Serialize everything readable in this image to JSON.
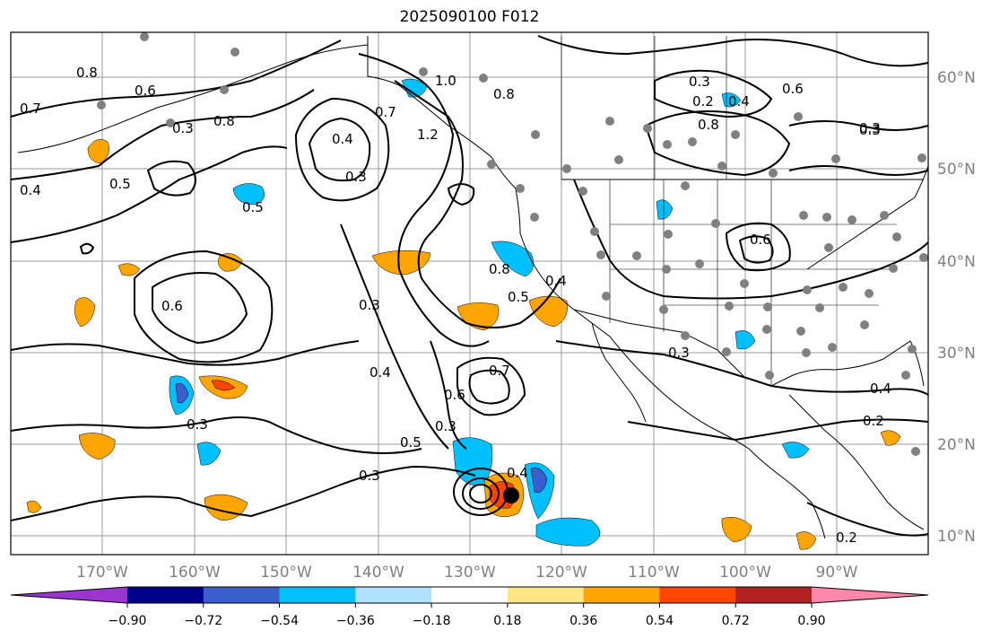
{
  "title": "2025090100 F012",
  "lon_labels": [
    "170°W",
    "160°W",
    "150°W",
    "140°W",
    "130°W",
    "120°W",
    "110°W",
    "100°W",
    "90°W"
  ],
  "lat_labels": [
    "60°N",
    "50°N",
    "40°N",
    "30°N",
    "20°N",
    "10°N"
  ],
  "colorbar": {
    "ticks": [
      "−0.90",
      "−0.72",
      "−0.54",
      "−0.36",
      "−0.18",
      "0.18",
      "0.36",
      "0.54",
      "0.72",
      "0.90"
    ],
    "colors": [
      "#9b35d0",
      "#00008b",
      "#3a5fcd",
      "#00bfff",
      "#aee0ff",
      "#ffffff",
      "#ffe787",
      "#ffa500",
      "#ff4500",
      "#b22222",
      "#ff88aa"
    ]
  },
  "contour_labels": [
    "0.8",
    "0.7",
    "0.4",
    "0.5",
    "0.6",
    "0.8",
    "0.3",
    "1.0",
    "0.8",
    "0.7",
    "1.2",
    "0.4",
    "0.3",
    "0.5",
    "0.3",
    "0.2",
    "0.4",
    "0.8",
    "0.6",
    "0.3",
    "0.6",
    "0.8",
    "0.5",
    "0.4",
    "0.6",
    "0.3",
    "0.7",
    "0.6",
    "0.3",
    "0.4",
    "0.5",
    "0.3",
    "0.3",
    "0.4",
    "0.2",
    "0.3",
    "0.4",
    "0.2",
    "0.3"
  ],
  "colors": {
    "contour": "#000000",
    "station": "#808080",
    "cyclone": "#000000"
  }
}
